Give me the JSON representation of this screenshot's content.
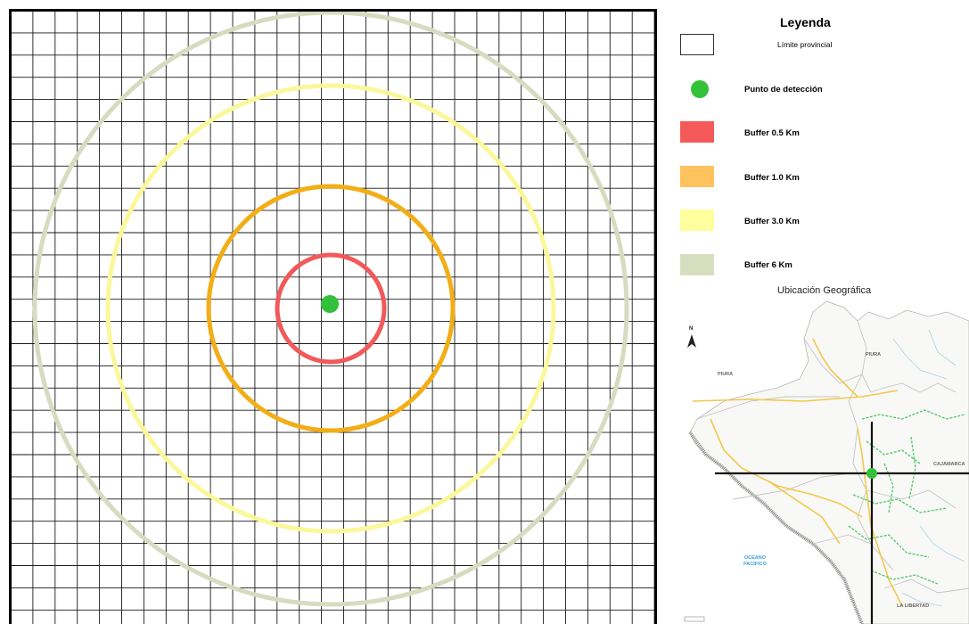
{
  "legend": {
    "title": "Leyenda",
    "items": [
      {
        "label": "Límite provincial",
        "swatch": "outline",
        "color": "#ffffff"
      },
      {
        "label": "Punto de detección",
        "swatch": "dot",
        "color": "#33c13a"
      },
      {
        "label": "Buffer 0.5 Km",
        "swatch": "box",
        "color": "#f45a5a"
      },
      {
        "label": "Buffer 1.0 Km",
        "swatch": "box",
        "color": "#fec25e"
      },
      {
        "label": "Buffer 3.0 Km",
        "swatch": "box",
        "color": "#fefe9c"
      },
      {
        "label": "Buffer 6 Km",
        "swatch": "box",
        "color": "#d8dfc0"
      }
    ]
  },
  "buffers": [
    {
      "km": 0.5,
      "color": "#f05a5a"
    },
    {
      "km": 1.0,
      "color": "#f2ae17"
    },
    {
      "km": 3.0,
      "color": "#fbf79b"
    },
    {
      "km": 6.0,
      "color": "#d7dbc0"
    }
  ],
  "detection_point_color": "#33c13a",
  "location_map": {
    "title": "Ubicación Geográfica",
    "north_label": "N",
    "regions": [
      "PIURA",
      "PIURA",
      "CAJAMARCA",
      "LA LIBERTAD"
    ],
    "ocean": "OCEANO\nPACIFICO"
  }
}
